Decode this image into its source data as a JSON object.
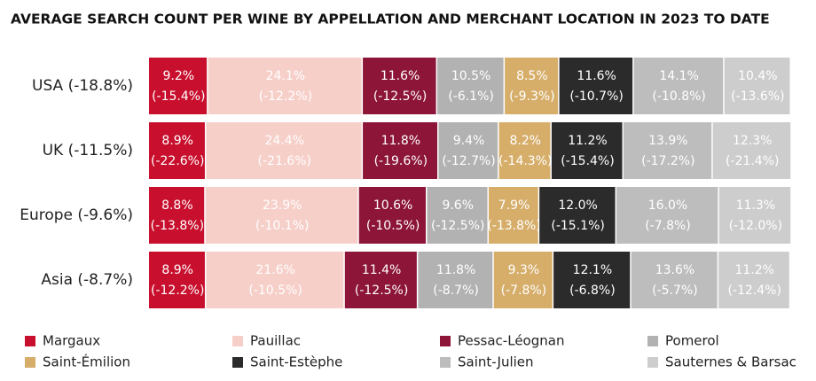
{
  "chart_data": {
    "type": "stacked-bar-horizontal",
    "title": "AVERAGE SEARCH COUNT PER WINE BY APPELLATION AND MERCHANT LOCATION IN 2023 TO DATE",
    "categories": [
      "USA (-18.8%)",
      "UK (-11.5%)",
      "Europe (-9.6%)",
      "Asia (-8.7%)"
    ],
    "xlim": [
      0,
      100
    ],
    "series": [
      {
        "name": "Margaux",
        "color": "#c8102e",
        "values": [
          9.2,
          8.9,
          8.8,
          8.9
        ],
        "value_labels": [
          "9.2%",
          "8.9%",
          "8.8%",
          "8.9%"
        ],
        "changes": [
          -15.4,
          -22.6,
          -13.8,
          -12.2
        ],
        "change_labels": [
          "(-15.4%)",
          "(-22.6%)",
          "(-13.8%)",
          "(-12.2%)"
        ]
      },
      {
        "name": "Pauillac",
        "color": "#f6cfc9",
        "values": [
          24.1,
          24.4,
          23.9,
          21.6
        ],
        "value_labels": [
          "24.1%",
          "24.4%",
          "23.9%",
          "21.6%"
        ],
        "changes": [
          -12.2,
          -21.6,
          -10.1,
          -10.5
        ],
        "change_labels": [
          "(-12.2%)",
          "(-21.6%)",
          "(-10.1%)",
          "(-10.5%)"
        ]
      },
      {
        "name": "Pessac-Léognan",
        "color": "#8c1538",
        "values": [
          11.6,
          11.8,
          10.6,
          11.4
        ],
        "value_labels": [
          "11.6%",
          "11.8%",
          "10.6%",
          "11.4%"
        ],
        "changes": [
          -12.5,
          -19.6,
          -10.5,
          -12.5
        ],
        "change_labels": [
          "(-12.5%)",
          "(-19.6%)",
          "(-10.5%)",
          "(-12.5%)"
        ]
      },
      {
        "name": "Pomerol",
        "color": "#b2b2b2",
        "values": [
          10.5,
          9.4,
          9.6,
          11.8
        ],
        "value_labels": [
          "10.5%",
          "9.4%",
          "9.6%",
          "11.8%"
        ],
        "changes": [
          -6.1,
          -12.7,
          -12.5,
          -8.7
        ],
        "change_labels": [
          "(-6.1%)",
          "(-12.7%)",
          "(-12.5%)",
          "(-8.7%)"
        ]
      },
      {
        "name": "Saint-Émilion",
        "color": "#d6ae6a",
        "values": [
          8.5,
          8.2,
          7.9,
          9.3
        ],
        "value_labels": [
          "8.5%",
          "8.2%",
          "7.9%",
          "9.3%"
        ],
        "changes": [
          -9.3,
          -14.3,
          -13.8,
          -7.8
        ],
        "change_labels": [
          "(-9.3%)",
          "(-14.3%)",
          "(-13.8%)",
          "(-7.8%)"
        ]
      },
      {
        "name": "Saint-Estèphe",
        "color": "#2b2b2b",
        "values": [
          11.6,
          11.2,
          12.0,
          12.1
        ],
        "value_labels": [
          "11.6%",
          "11.2%",
          "12.0%",
          "12.1%"
        ],
        "changes": [
          -10.7,
          -15.4,
          -15.1,
          -6.8
        ],
        "change_labels": [
          "(-10.7%)",
          "(-15.4%)",
          "(-15.1%)",
          "(-6.8%)"
        ]
      },
      {
        "name": "Saint-Julien",
        "color": "#bdbdbd",
        "values": [
          14.1,
          13.9,
          16.0,
          13.6
        ],
        "value_labels": [
          "14.1%",
          "13.9%",
          "16.0%",
          "13.6%"
        ],
        "changes": [
          -10.8,
          -17.2,
          -7.8,
          -5.7
        ],
        "change_labels": [
          "(-10.8%)",
          "(-17.2%)",
          "(-7.8%)",
          "(-5.7%)"
        ]
      },
      {
        "name": "Sauternes & Barsac",
        "color": "#cdcdcd",
        "values": [
          10.4,
          12.3,
          11.3,
          11.2
        ],
        "value_labels": [
          "10.4%",
          "12.3%",
          "11.3%",
          "11.2%"
        ],
        "changes": [
          -13.6,
          -21.4,
          -12.0,
          -12.4
        ],
        "change_labels": [
          "(-13.6%)",
          "(-21.4%)",
          "(-12.0%)",
          "(-12.4%)"
        ]
      }
    ]
  }
}
